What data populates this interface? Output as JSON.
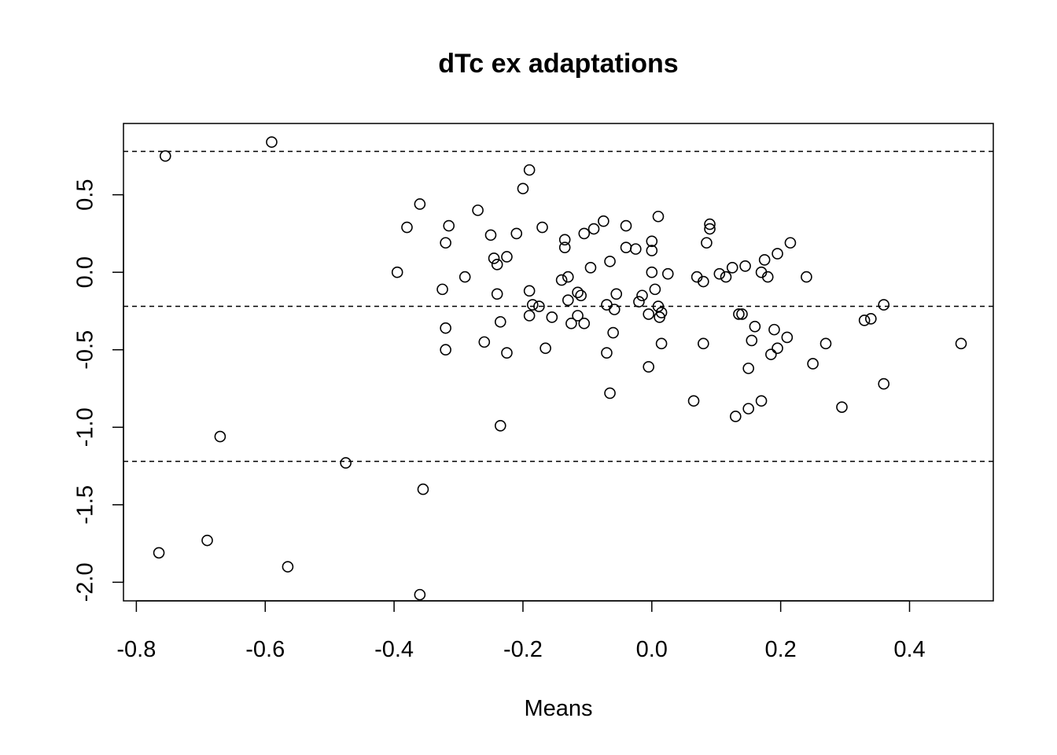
{
  "chart_data": {
    "type": "scatter",
    "title": "dTc ex adaptations",
    "xlabel": "Means",
    "ylabel": "",
    "xlim": [
      -0.82,
      0.53
    ],
    "ylim": [
      -2.12,
      0.96
    ],
    "x_ticks": [
      -0.8,
      -0.6,
      -0.4,
      -0.2,
      0.0,
      0.2,
      0.4
    ],
    "x_tick_labels": [
      "-0.8",
      "-0.6",
      "-0.4",
      "-0.2",
      "0.0",
      "0.2",
      "0.4"
    ],
    "y_ticks": [
      -2.0,
      -1.5,
      -1.0,
      -0.5,
      0.0,
      0.5
    ],
    "y_tick_labels": [
      "-2.0",
      "-1.5",
      "-1.0",
      "-0.5",
      "0.0",
      "0.5"
    ],
    "reference_lines": [
      0.78,
      -0.22,
      -1.22
    ],
    "marker": "open-circle",
    "grid": false,
    "points": [
      [
        -0.755,
        0.75
      ],
      [
        -0.59,
        0.84
      ],
      [
        -0.765,
        -1.81
      ],
      [
        -0.69,
        -1.73
      ],
      [
        -0.67,
        -1.06
      ],
      [
        -0.565,
        -1.9
      ],
      [
        -0.475,
        -1.23
      ],
      [
        -0.355,
        -1.4
      ],
      [
        -0.36,
        -2.08
      ],
      [
        -0.395,
        0.0
      ],
      [
        -0.38,
        0.29
      ],
      [
        -0.36,
        0.44
      ],
      [
        -0.325,
        -0.11
      ],
      [
        -0.32,
        0.19
      ],
      [
        -0.32,
        -0.36
      ],
      [
        -0.32,
        -0.5
      ],
      [
        -0.315,
        0.3
      ],
      [
        -0.29,
        -0.03
      ],
      [
        -0.27,
        0.4
      ],
      [
        -0.26,
        -0.45
      ],
      [
        -0.25,
        0.24
      ],
      [
        -0.245,
        0.09
      ],
      [
        -0.24,
        0.05
      ],
      [
        -0.24,
        -0.14
      ],
      [
        -0.235,
        -0.32
      ],
      [
        -0.235,
        -0.99
      ],
      [
        -0.225,
        0.1
      ],
      [
        -0.225,
        -0.52
      ],
      [
        -0.21,
        0.25
      ],
      [
        -0.2,
        0.54
      ],
      [
        -0.19,
        0.66
      ],
      [
        -0.19,
        -0.12
      ],
      [
        -0.19,
        -0.28
      ],
      [
        -0.185,
        -0.21
      ],
      [
        -0.175,
        -0.22
      ],
      [
        -0.17,
        0.29
      ],
      [
        -0.165,
        -0.49
      ],
      [
        -0.155,
        -0.29
      ],
      [
        -0.14,
        -0.05
      ],
      [
        -0.135,
        0.16
      ],
      [
        -0.135,
        0.21
      ],
      [
        -0.13,
        -0.18
      ],
      [
        -0.13,
        -0.03
      ],
      [
        -0.125,
        -0.33
      ],
      [
        -0.115,
        -0.28
      ],
      [
        -0.115,
        -0.13
      ],
      [
        -0.11,
        -0.15
      ],
      [
        -0.105,
        -0.33
      ],
      [
        -0.105,
        0.25
      ],
      [
        -0.095,
        0.03
      ],
      [
        -0.09,
        0.28
      ],
      [
        -0.075,
        0.33
      ],
      [
        -0.07,
        -0.21
      ],
      [
        -0.07,
        -0.52
      ],
      [
        -0.065,
        -0.78
      ],
      [
        -0.065,
        0.07
      ],
      [
        -0.06,
        -0.39
      ],
      [
        -0.058,
        -0.24
      ],
      [
        -0.055,
        -0.14
      ],
      [
        -0.04,
        0.3
      ],
      [
        -0.04,
        0.16
      ],
      [
        -0.025,
        0.15
      ],
      [
        -0.02,
        -0.19
      ],
      [
        -0.015,
        -0.15
      ],
      [
        -0.005,
        -0.61
      ],
      [
        -0.005,
        -0.27
      ],
      [
        0.0,
        0.14
      ],
      [
        0.0,
        0.2
      ],
      [
        0.0,
        0.0
      ],
      [
        0.005,
        -0.11
      ],
      [
        0.01,
        0.36
      ],
      [
        0.01,
        -0.22
      ],
      [
        0.012,
        -0.29
      ],
      [
        0.015,
        -0.46
      ],
      [
        0.015,
        -0.26
      ],
      [
        0.025,
        -0.01
      ],
      [
        0.065,
        -0.83
      ],
      [
        0.07,
        -0.03
      ],
      [
        0.08,
        -0.46
      ],
      [
        0.08,
        -0.06
      ],
      [
        0.085,
        0.19
      ],
      [
        0.09,
        0.28
      ],
      [
        0.09,
        0.31
      ],
      [
        0.105,
        -0.01
      ],
      [
        0.115,
        -0.03
      ],
      [
        0.125,
        0.03
      ],
      [
        0.13,
        -0.93
      ],
      [
        0.135,
        -0.27
      ],
      [
        0.14,
        -0.27
      ],
      [
        0.145,
        0.04
      ],
      [
        0.15,
        -0.62
      ],
      [
        0.15,
        -0.88
      ],
      [
        0.155,
        -0.44
      ],
      [
        0.16,
        -0.35
      ],
      [
        0.17,
        -0.83
      ],
      [
        0.17,
        0.0
      ],
      [
        0.175,
        0.08
      ],
      [
        0.18,
        -0.03
      ],
      [
        0.185,
        -0.53
      ],
      [
        0.19,
        -0.37
      ],
      [
        0.195,
        -0.49
      ],
      [
        0.195,
        0.12
      ],
      [
        0.21,
        -0.42
      ],
      [
        0.215,
        0.19
      ],
      [
        0.24,
        -0.03
      ],
      [
        0.25,
        -0.59
      ],
      [
        0.27,
        -0.46
      ],
      [
        0.295,
        -0.87
      ],
      [
        0.33,
        -0.31
      ],
      [
        0.34,
        -0.3
      ],
      [
        0.36,
        -0.21
      ],
      [
        0.36,
        -0.72
      ],
      [
        0.48,
        -0.46
      ]
    ]
  }
}
